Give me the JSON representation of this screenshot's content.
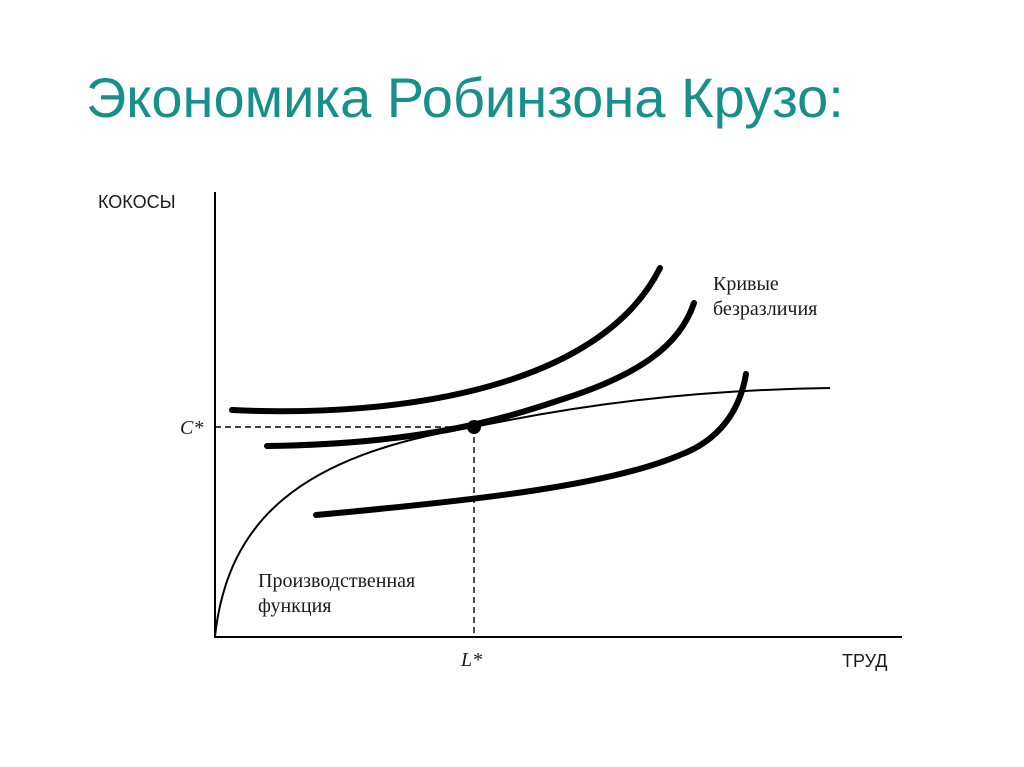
{
  "slide": {
    "title": "Экономика Робинзона Крузо:"
  },
  "diagram": {
    "y_axis_label": "КОКОСЫ",
    "x_axis_label": "ТРУД",
    "equilibrium_c_label": "C*",
    "equilibrium_l_label": "L*",
    "indifference_label_line1": "Кривые",
    "indifference_label_line2": "безразличия",
    "production_label_line1": "Производственная",
    "production_label_line2": "функция"
  },
  "colors": {
    "title": "#17908a",
    "ink": "#000000"
  }
}
